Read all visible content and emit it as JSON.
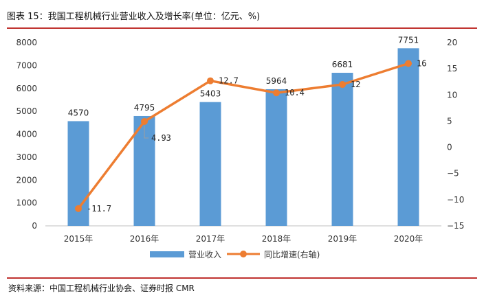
{
  "title": "图表  15：我国工程机械行业营业收入及增长率(单位：亿元、%)",
  "source": "资料来源：中国工程机械行业协会、证券时报 CMR",
  "colors": {
    "bar": "#5b9bd5",
    "line": "#ed7d31",
    "accent_rule": "#c0322f"
  },
  "chart_data": {
    "type": "bar+line",
    "categories": [
      "2015年",
      "2016年",
      "2017年",
      "2018年",
      "2019年",
      "2020年"
    ],
    "series": [
      {
        "name": "营业收入",
        "type": "bar",
        "axis": "left",
        "values": [
          4570,
          4795,
          5403,
          5964,
          6681,
          7751
        ]
      },
      {
        "name": "同比增速(右轴)",
        "type": "line",
        "axis": "right",
        "values": [
          -11.7,
          4.93,
          12.7,
          10.4,
          12,
          16
        ]
      }
    ],
    "bar_labels": [
      "4570",
      "4795",
      "5403",
      "5964",
      "6681",
      "7751"
    ],
    "line_labels": [
      "-11.7",
      "4.93",
      "12.7",
      "10.4",
      "12",
      "16"
    ],
    "y_left": {
      "min": 0,
      "max": 8000,
      "ticks": [
        "0",
        "1000",
        "2000",
        "3000",
        "4000",
        "5000",
        "6000",
        "7000",
        "8000"
      ]
    },
    "y_right": {
      "min": -15,
      "max": 20,
      "ticks": [
        "−15",
        "−10",
        "−5",
        "0",
        "5",
        "10",
        "15",
        "20"
      ]
    },
    "legend": {
      "position": "bottom",
      "items": [
        "营业收入",
        "同比增速(右轴)"
      ]
    }
  }
}
